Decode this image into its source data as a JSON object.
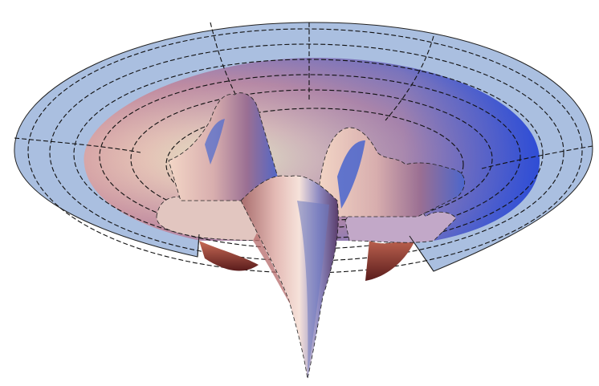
{
  "figure": {
    "kind": "3d-surface-plot",
    "description_hidden": true,
    "mesh_style": "dashed black grid lines",
    "outer_ring_color": "#aabfe0",
    "inner_gradient": [
      "#f4f1c0",
      "#e7bfae",
      "#b07ea0",
      "#6a79c8",
      "#3a5ad8"
    ],
    "peak_colors": {
      "light": "#f2d3c8",
      "mid": "#c79aa0",
      "shadow": "#4d6fd0",
      "dark": "#7a2a2a"
    }
  }
}
